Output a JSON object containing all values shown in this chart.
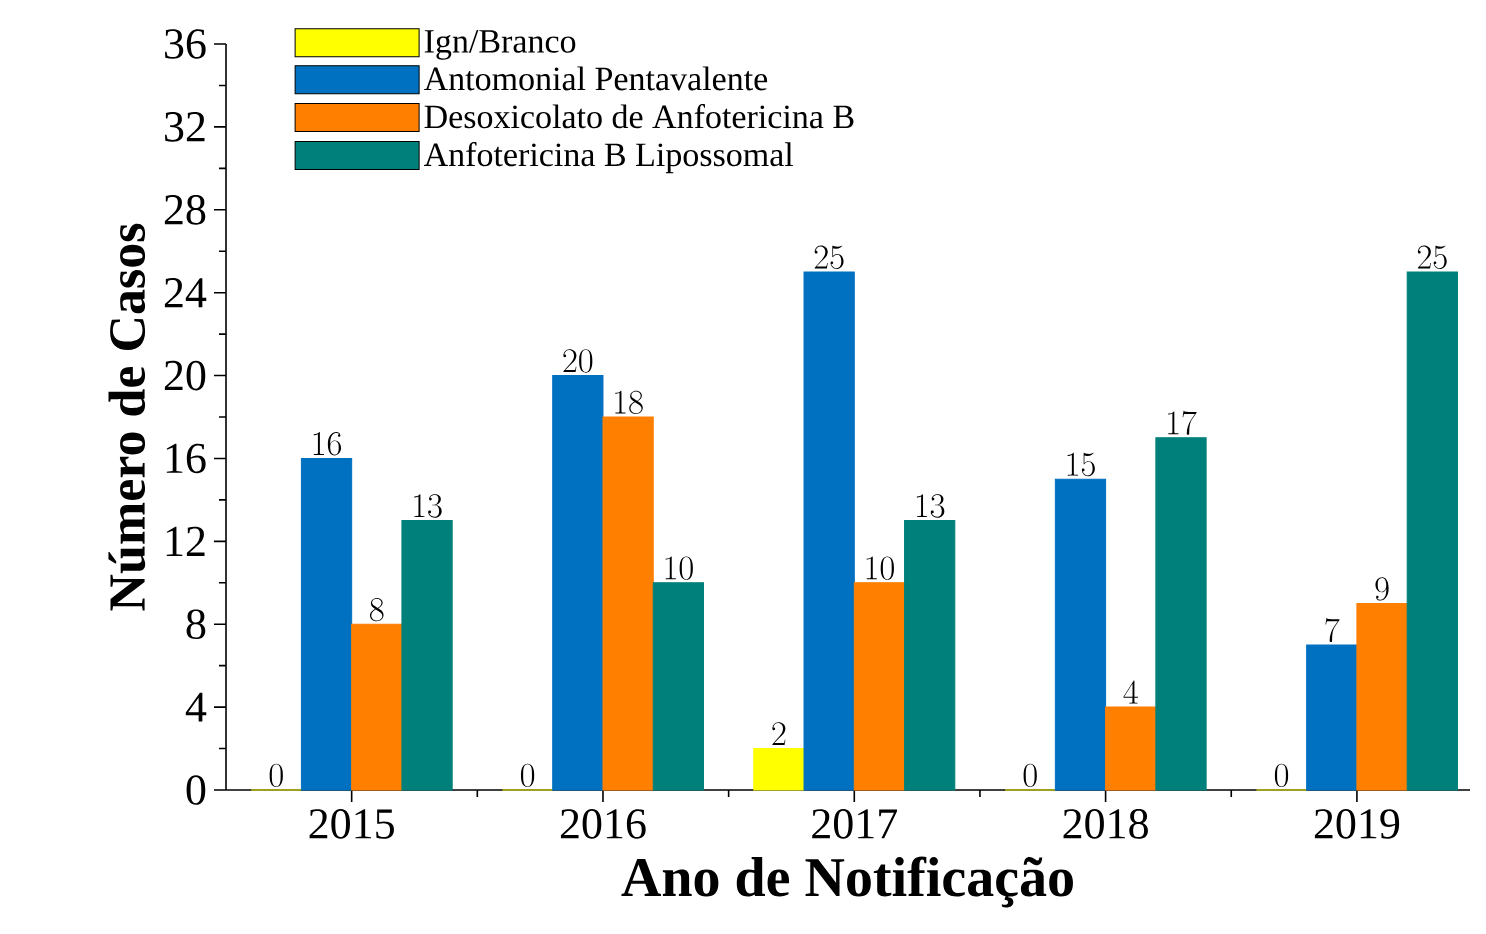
{
  "chart_data": {
    "type": "bar",
    "xlabel": "Ano de Notificação",
    "ylabel": "Número de Casos",
    "categories": [
      "2015",
      "2016",
      "2017",
      "2018",
      "2019"
    ],
    "series": [
      {
        "name": "Ign/Branco",
        "color": "#ffff00",
        "values": [
          0,
          0,
          2,
          0,
          0
        ]
      },
      {
        "name": "Antomonial Pentavalente",
        "color": "#0070c0",
        "values": [
          16,
          20,
          25,
          15,
          7
        ]
      },
      {
        "name": "Desoxicolato de Anfotericina B",
        "color": "#ff7f00",
        "values": [
          8,
          18,
          10,
          4,
          9
        ]
      },
      {
        "name": "Anfotericina B Lipossomal",
        "color": "#00807a",
        "values": [
          13,
          10,
          13,
          17,
          25
        ]
      }
    ],
    "ylim": [
      0,
      36
    ],
    "yticks": [
      0,
      4,
      8,
      12,
      16,
      20,
      24,
      28,
      32,
      36
    ],
    "data_labels": true,
    "legend": "top left",
    "grid": false
  }
}
